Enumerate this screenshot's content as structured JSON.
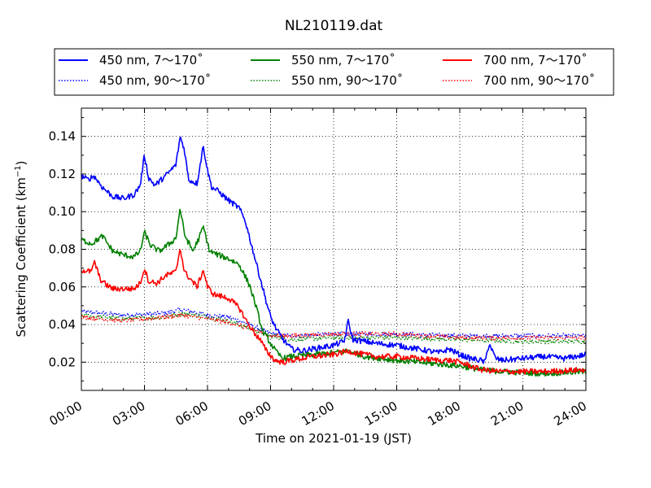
{
  "chart_data": {
    "type": "line",
    "title": "NL210119.dat",
    "xlabel": "Time on 2021-01-19 (JST)",
    "ylabel": "Scattering Coefficient (km",
    "ylabel_sup": "−1",
    "ylabel_end": ")",
    "x_ticks": [
      "00:00",
      "03:00",
      "06:00",
      "09:00",
      "12:00",
      "15:00",
      "18:00",
      "21:00",
      "24:00"
    ],
    "y_ticks": [
      "0.02",
      "0.04",
      "0.06",
      "0.08",
      "0.10",
      "0.12",
      "0.14"
    ],
    "xlim": [
      0,
      24
    ],
    "ylim": [
      0.005,
      0.155
    ],
    "grid": true,
    "legend_position": "top",
    "series": [
      {
        "name": "450 nm, 7～170˚",
        "color": "#0000ff",
        "style": "solid",
        "x": [
          0,
          0.3,
          0.6,
          1,
          1.5,
          2,
          2.5,
          2.8,
          3,
          3.2,
          3.5,
          4,
          4.5,
          4.7,
          4.9,
          5.1,
          5.5,
          5.8,
          6,
          6.2,
          6.5,
          7,
          7.5,
          7.8,
          8.1,
          8.5,
          8.8,
          9,
          9.3,
          9.6,
          10,
          10.5,
          11,
          12,
          12.5,
          12.7,
          12.9,
          13.5,
          14,
          15,
          16,
          17,
          17.5,
          18,
          18.5,
          19,
          19.2,
          19.4,
          19.7,
          20,
          21,
          22,
          23,
          24
        ],
        "y": [
          0.119,
          0.117,
          0.119,
          0.113,
          0.108,
          0.107,
          0.109,
          0.114,
          0.13,
          0.118,
          0.114,
          0.119,
          0.125,
          0.14,
          0.133,
          0.117,
          0.115,
          0.135,
          0.122,
          0.113,
          0.111,
          0.106,
          0.102,
          0.095,
          0.082,
          0.065,
          0.052,
          0.044,
          0.037,
          0.032,
          0.027,
          0.026,
          0.027,
          0.029,
          0.031,
          0.042,
          0.032,
          0.031,
          0.03,
          0.029,
          0.027,
          0.025,
          0.027,
          0.024,
          0.022,
          0.021,
          0.02,
          0.03,
          0.022,
          0.021,
          0.022,
          0.023,
          0.022,
          0.024
        ]
      },
      {
        "name": "450 nm, 90～170˚",
        "color": "#0000ff",
        "style": "dotted",
        "x": [
          0,
          2,
          4,
          4.8,
          6,
          7,
          8,
          9,
          10,
          12,
          15,
          18,
          21,
          24
        ],
        "y": [
          0.047,
          0.045,
          0.046,
          0.048,
          0.045,
          0.044,
          0.04,
          0.035,
          0.034,
          0.035,
          0.035,
          0.034,
          0.034,
          0.034
        ]
      },
      {
        "name": "550 nm, 7～170˚",
        "color": "#008000",
        "style": "solid",
        "x": [
          0,
          0.5,
          1,
          1.5,
          2,
          2.5,
          2.8,
          3,
          3.3,
          3.7,
          4.2,
          4.5,
          4.7,
          4.9,
          5.3,
          5.6,
          5.8,
          6.1,
          6.5,
          7,
          7.5,
          8,
          8.3,
          8.6,
          9,
          9.3,
          9.6,
          10,
          11,
          12,
          12.7,
          13.5,
          15,
          16,
          17,
          18,
          19,
          20,
          22,
          24
        ],
        "y": [
          0.085,
          0.083,
          0.087,
          0.079,
          0.077,
          0.076,
          0.079,
          0.089,
          0.082,
          0.079,
          0.083,
          0.086,
          0.102,
          0.088,
          0.079,
          0.086,
          0.092,
          0.079,
          0.077,
          0.075,
          0.072,
          0.061,
          0.05,
          0.037,
          0.03,
          0.025,
          0.022,
          0.023,
          0.024,
          0.025,
          0.026,
          0.023,
          0.021,
          0.02,
          0.019,
          0.018,
          0.016,
          0.015,
          0.014,
          0.015
        ]
      },
      {
        "name": "550 nm, 90～170˚",
        "color": "#008000",
        "style": "dotted",
        "x": [
          0,
          2,
          4,
          4.8,
          6,
          7,
          8,
          9,
          10,
          12,
          15,
          18,
          21,
          24
        ],
        "y": [
          0.045,
          0.043,
          0.044,
          0.046,
          0.044,
          0.042,
          0.038,
          0.034,
          0.032,
          0.033,
          0.033,
          0.032,
          0.031,
          0.031
        ]
      },
      {
        "name": "700 nm, 7～170˚",
        "color": "#ff0000",
        "style": "solid",
        "x": [
          0,
          0.5,
          0.6,
          0.9,
          1.2,
          1.5,
          2,
          2.5,
          2.8,
          3,
          3.2,
          3.6,
          4,
          4.5,
          4.7,
          4.9,
          5.2,
          5.5,
          5.8,
          6,
          6.3,
          7,
          7.5,
          7.9,
          8.2,
          8.5,
          8.8,
          9.2,
          9.6,
          10,
          11,
          12,
          12.7,
          13,
          14,
          15,
          16,
          17,
          17.5,
          18,
          18.5,
          19,
          20,
          22,
          24
        ],
        "y": [
          0.069,
          0.068,
          0.074,
          0.064,
          0.061,
          0.059,
          0.059,
          0.059,
          0.062,
          0.07,
          0.063,
          0.062,
          0.066,
          0.068,
          0.081,
          0.068,
          0.064,
          0.06,
          0.069,
          0.06,
          0.056,
          0.054,
          0.049,
          0.041,
          0.036,
          0.032,
          0.026,
          0.021,
          0.02,
          0.021,
          0.023,
          0.024,
          0.026,
          0.025,
          0.023,
          0.023,
          0.022,
          0.021,
          0.021,
          0.02,
          0.018,
          0.016,
          0.015,
          0.015,
          0.016
        ]
      },
      {
        "name": "700 nm, 90～170˚",
        "color": "#ff0000",
        "style": "dotted",
        "x": [
          0,
          2,
          4,
          4.8,
          6,
          7,
          8,
          9,
          10,
          12,
          15,
          18,
          21,
          24
        ],
        "y": [
          0.044,
          0.042,
          0.044,
          0.045,
          0.043,
          0.041,
          0.038,
          0.034,
          0.034,
          0.035,
          0.035,
          0.033,
          0.033,
          0.033
        ]
      }
    ]
  }
}
